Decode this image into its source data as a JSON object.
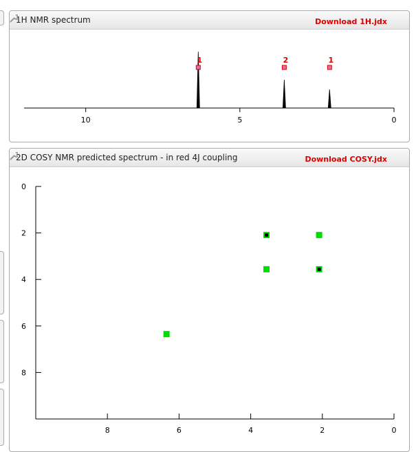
{
  "chart_data": [
    {
      "type": "spectrum",
      "title": "1H NMR spectrum",
      "link": "Download 1H.jdx",
      "xlim": [
        12,
        0
      ],
      "xticks": [
        10,
        5,
        0
      ],
      "ylim": [
        0,
        1.05
      ],
      "x": [
        6.35,
        3.56,
        2.09
      ],
      "values": [
        1.0,
        0.5,
        0.33
      ],
      "peak_labels": [
        "1",
        "2",
        "1"
      ],
      "color": "#000000",
      "label_color": "#dd0000"
    },
    {
      "type": "scatter",
      "title": "2D COSY NMR predicted spectrum - in red 4J coupling",
      "link": "Download COSY.jdx",
      "xlim": [
        10,
        0
      ],
      "xticks": [
        8,
        6,
        4,
        2,
        0
      ],
      "ylim": [
        0,
        10
      ],
      "yticks": [
        0,
        2,
        4,
        6,
        8
      ],
      "series": [
        {
          "color": "#00dd00",
          "x": [
            2.09,
            3.56,
            6.35
          ],
          "values": [
            2.09,
            3.56,
            6.35
          ]
        },
        {
          "color": "#000000",
          "edgecolor": "#00dd00",
          "x": [
            3.56,
            2.09
          ],
          "values": [
            2.09,
            3.56
          ]
        }
      ]
    }
  ]
}
